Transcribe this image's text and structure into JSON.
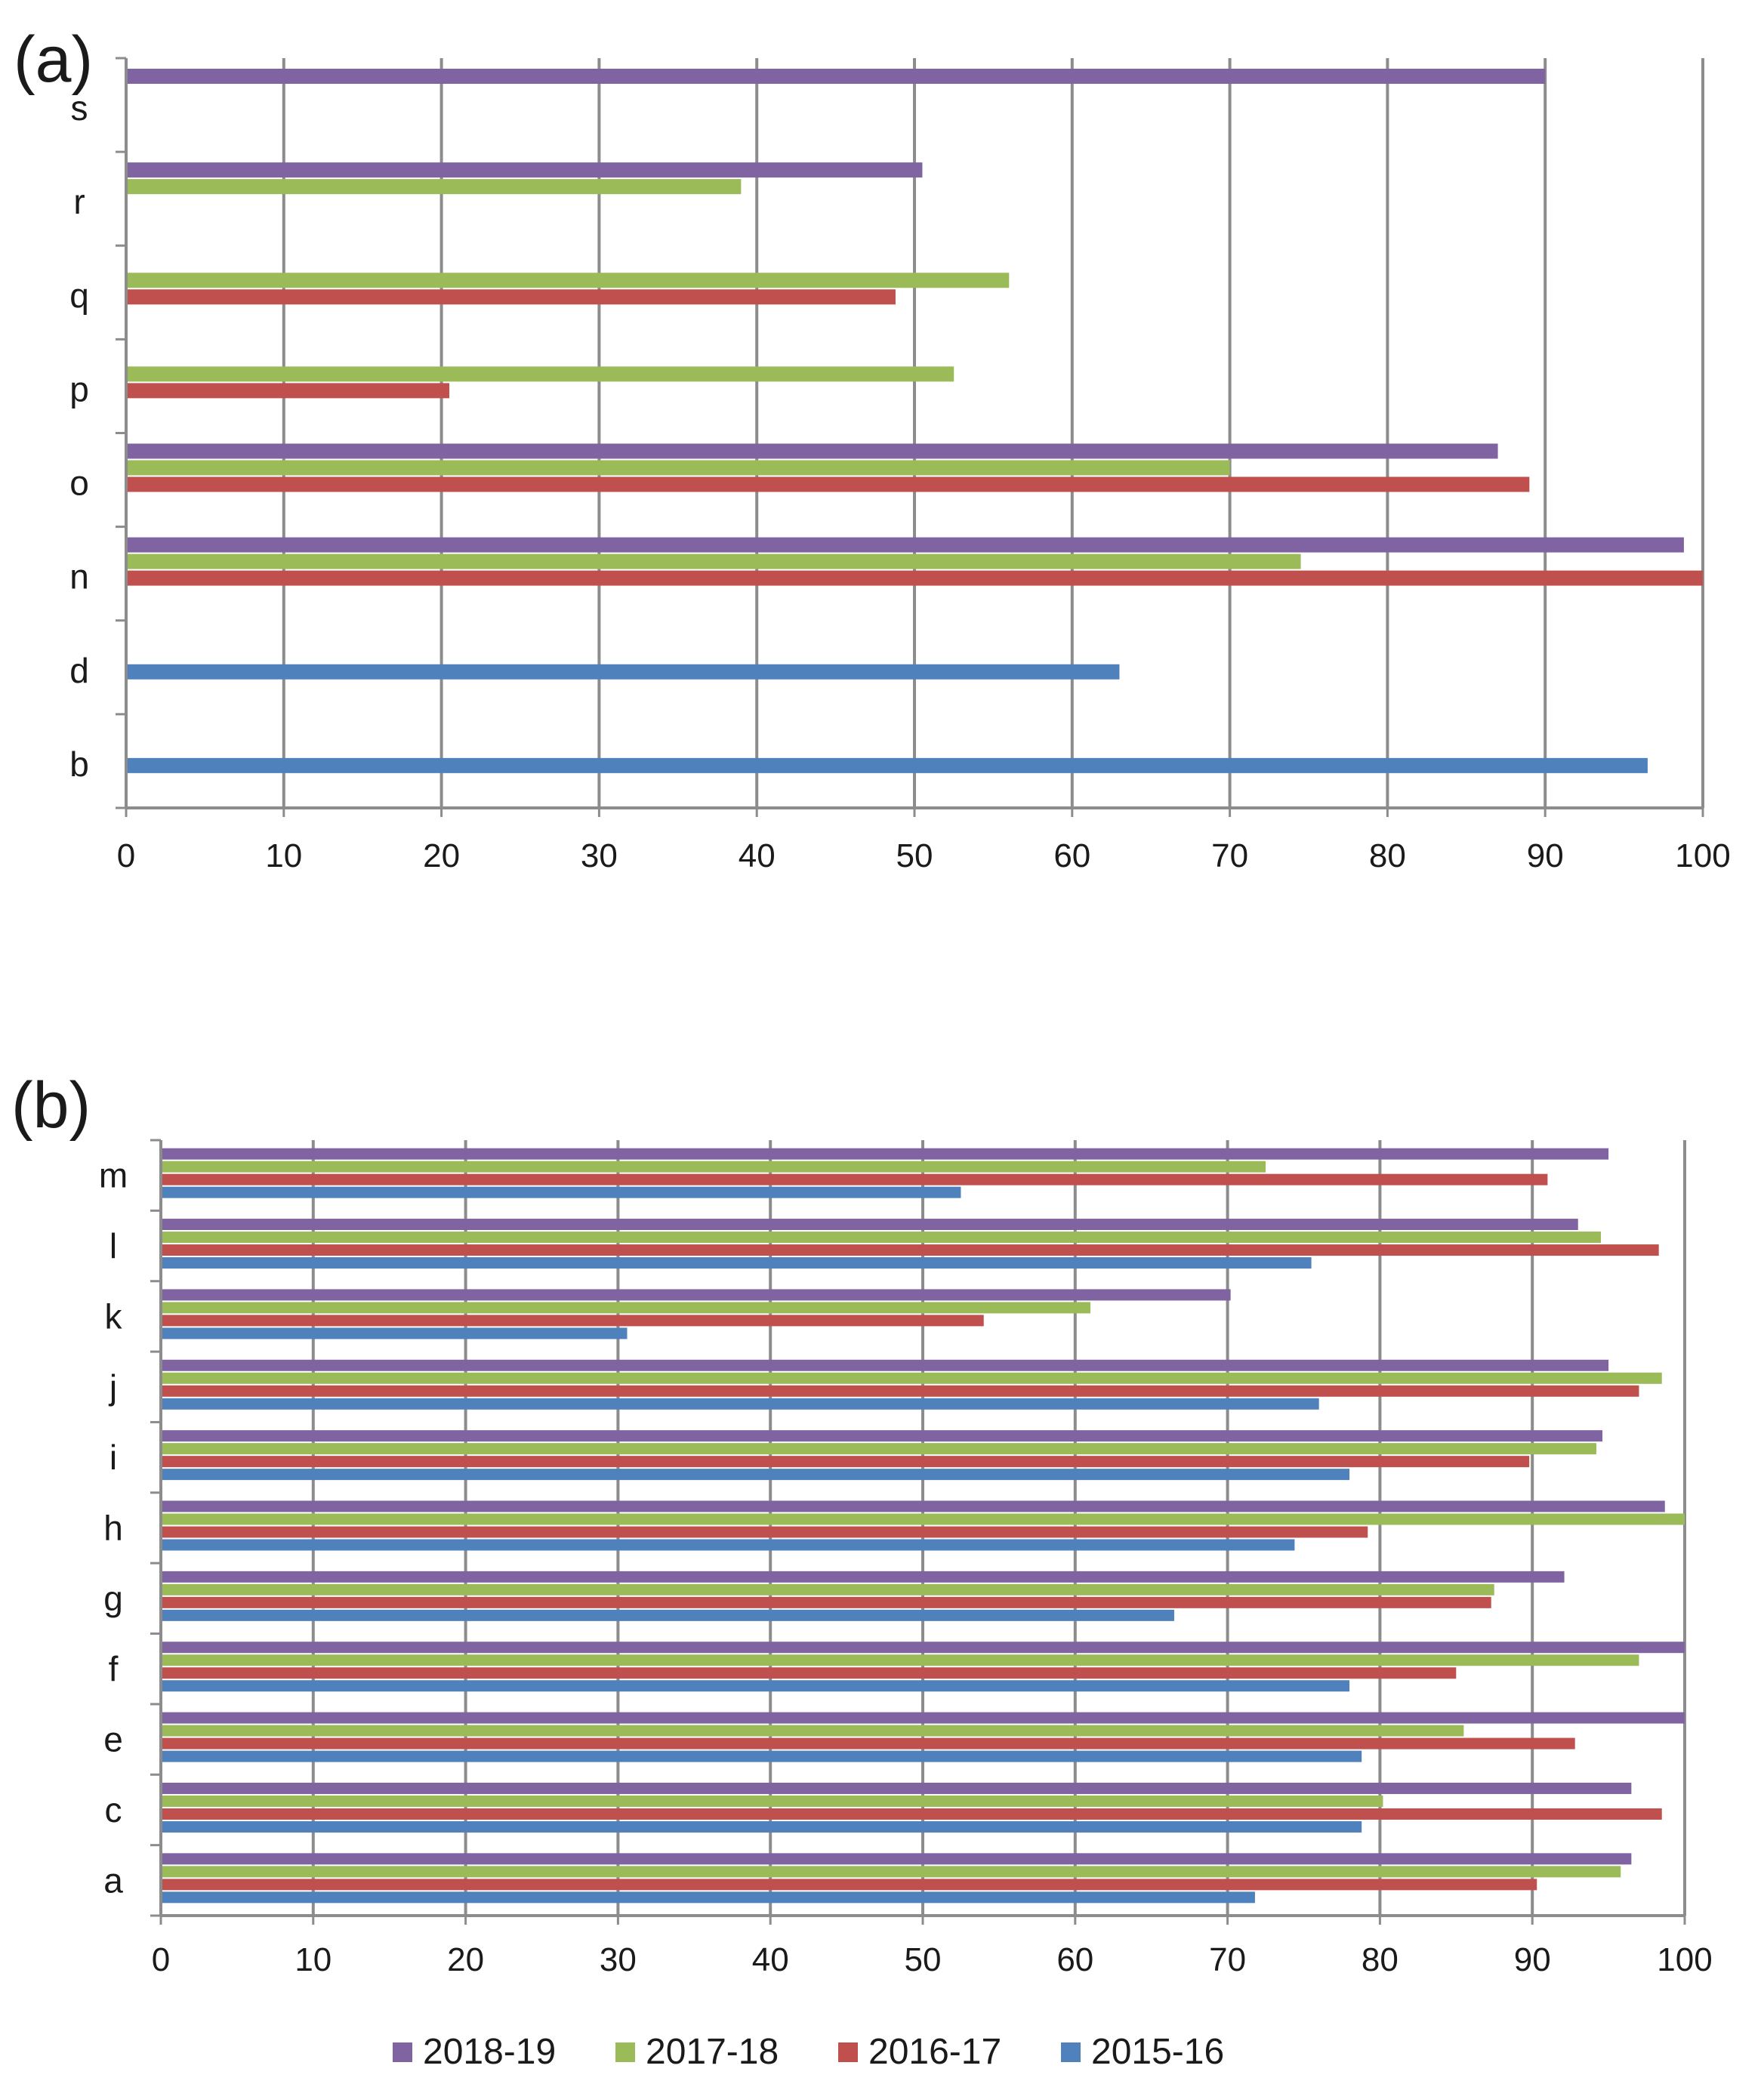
{
  "colors": {
    "2018-19": "#8064A2",
    "2017-18": "#9BBB59",
    "2016-17": "#C0504D",
    "2015-16": "#4F81BD",
    "grid": "#8c8c8c",
    "axis": "#8c8c8c"
  },
  "legend": {
    "items": [
      {
        "name": "2018-19"
      },
      {
        "name": "2017-18"
      },
      {
        "name": "2016-17"
      },
      {
        "name": "2015-16"
      }
    ]
  },
  "chart_data": [
    {
      "type": "bar",
      "orientation": "horizontal",
      "panel_label": "(a)",
      "categories": [
        "s",
        "r",
        "q",
        "p",
        "o",
        "n",
        "d",
        "b"
      ],
      "xlim": [
        0,
        100
      ],
      "xticks": [
        0,
        10,
        20,
        30,
        40,
        50,
        60,
        70,
        80,
        90,
        100
      ],
      "grid": "vertical",
      "series": [
        {
          "name": "2018-19",
          "values": [
            90,
            50.5,
            null,
            null,
            87,
            98.8,
            null,
            null
          ]
        },
        {
          "name": "2017-18",
          "values": [
            null,
            39,
            56,
            52.5,
            70,
            74.5,
            null,
            null
          ]
        },
        {
          "name": "2016-17",
          "values": [
            null,
            null,
            48.8,
            20.5,
            89,
            100,
            null,
            null
          ]
        },
        {
          "name": "2015-16",
          "values": [
            null,
            null,
            null,
            null,
            null,
            null,
            63,
            96.5
          ]
        }
      ]
    },
    {
      "type": "bar",
      "orientation": "horizontal",
      "panel_label": "(b)",
      "categories": [
        "m",
        "l",
        "k",
        "j",
        "i",
        "h",
        "g",
        "f",
        "e",
        "c",
        "a"
      ],
      "xlim": [
        0,
        100
      ],
      "xticks": [
        0,
        10,
        20,
        30,
        40,
        50,
        60,
        70,
        80,
        90,
        100
      ],
      "grid": "vertical",
      "series": [
        {
          "name": "2018-19",
          "values": [
            95,
            93,
            70.2,
            95,
            94.6,
            98.7,
            92.1,
            100,
            100,
            96.5,
            96.5
          ]
        },
        {
          "name": "2017-18",
          "values": [
            72.5,
            94.5,
            61,
            98.5,
            94.2,
            100,
            87.5,
            97,
            85.5,
            80.2,
            95.8
          ]
        },
        {
          "name": "2016-17",
          "values": [
            91,
            98.3,
            54,
            97,
            89.8,
            79.2,
            87.3,
            85,
            92.8,
            98.5,
            90.3
          ]
        },
        {
          "name": "2015-16",
          "values": [
            52.5,
            75.5,
            30.6,
            76,
            78,
            74.4,
            66.5,
            78,
            78.8,
            78.8,
            71.8
          ]
        }
      ]
    }
  ]
}
